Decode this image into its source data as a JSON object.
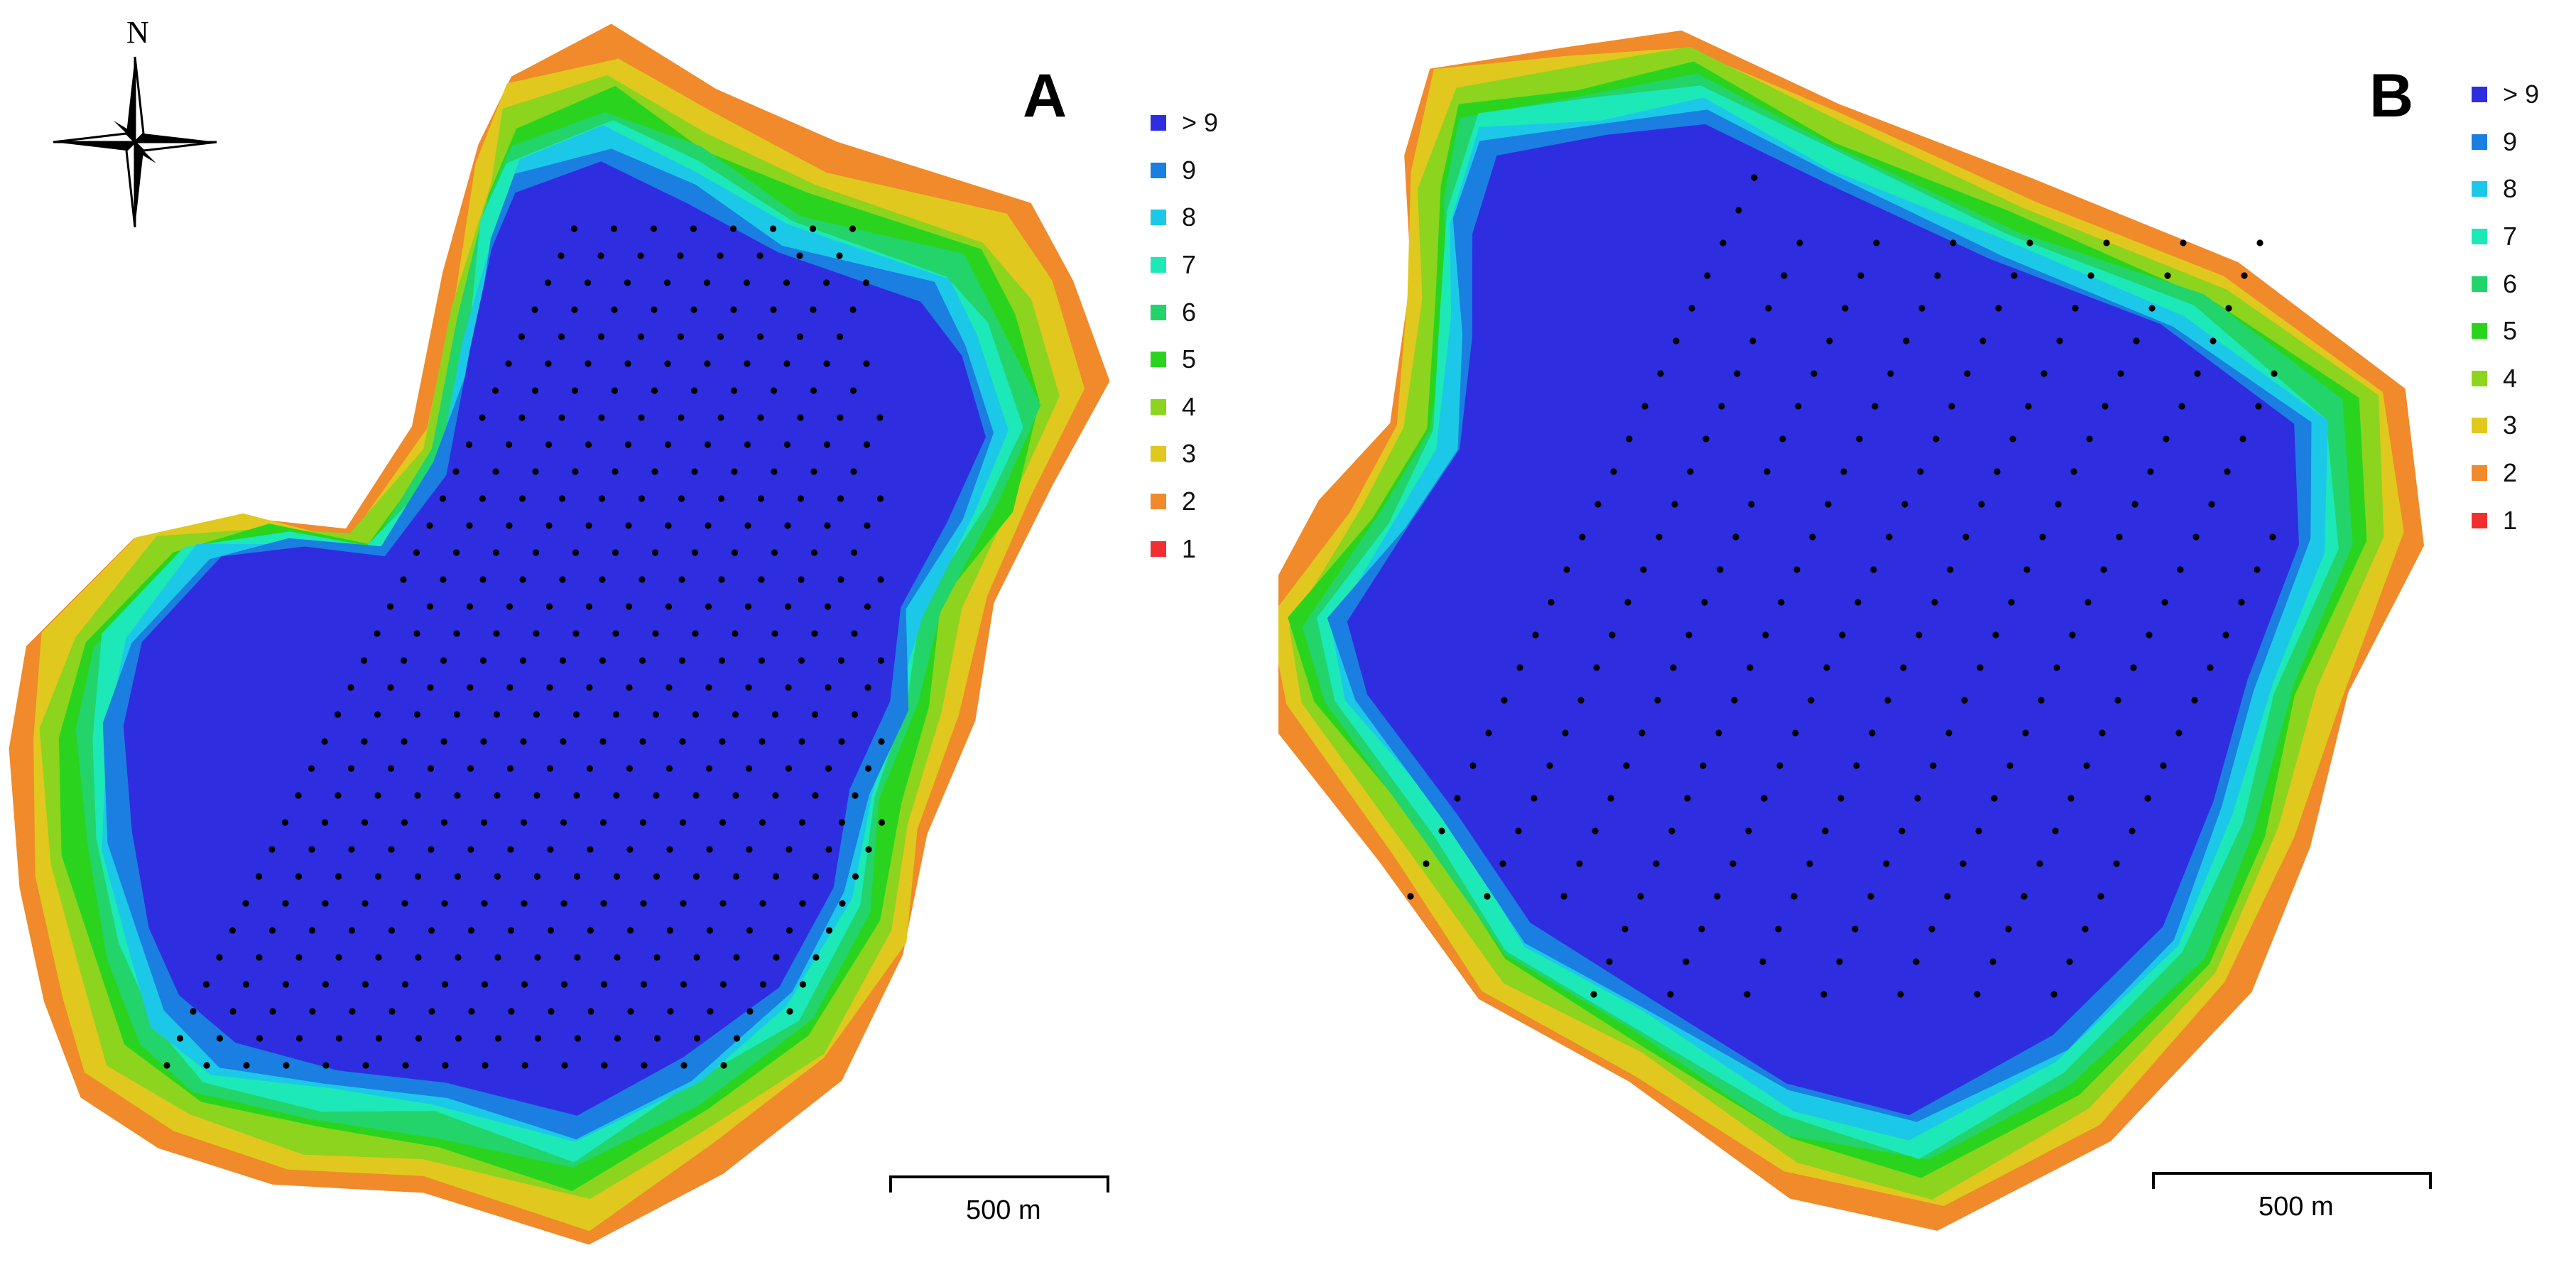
{
  "panels": [
    {
      "letter": "A",
      "scale_label": "500 m"
    },
    {
      "letter": "B",
      "scale_label": "500 m"
    }
  ],
  "north_label": "N",
  "legend": {
    "items": [
      {
        "label": "> 9",
        "color": "#2e2ee0"
      },
      {
        "label": "9",
        "color": "#1a7fe0"
      },
      {
        "label": "8",
        "color": "#1cc8e8"
      },
      {
        "label": "7",
        "color": "#1de8b8"
      },
      {
        "label": "6",
        "color": "#22d46a"
      },
      {
        "label": "5",
        "color": "#2ad41e"
      },
      {
        "label": "4",
        "color": "#8cd41e"
      },
      {
        "label": "3",
        "color": "#e0c81e"
      },
      {
        "label": "2",
        "color": "#f08a2a"
      },
      {
        "label": "1",
        "color": "#f03030"
      }
    ]
  },
  "colors": {
    "deep": "#2e2ee0",
    "survey_point": "#000000"
  },
  "icons": {
    "north_arrow": "compass-rose-icon"
  }
}
